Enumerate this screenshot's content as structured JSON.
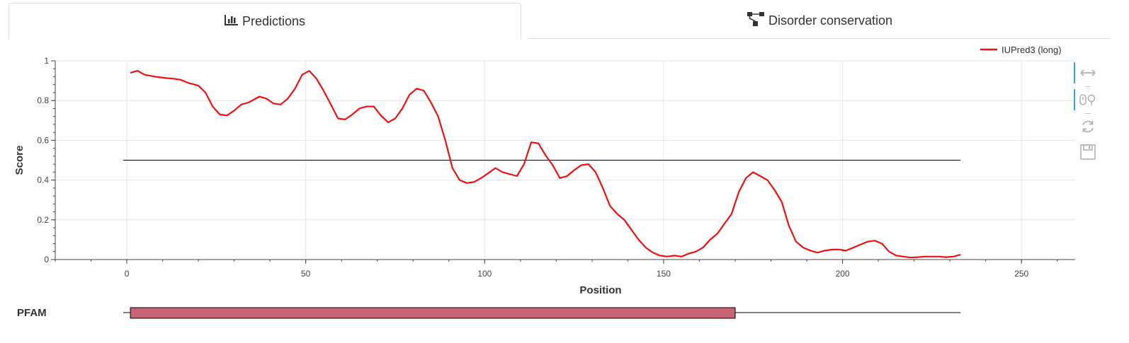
{
  "tabs": [
    {
      "label": "Predictions",
      "icon": "bar-chart-icon",
      "active": true
    },
    {
      "label": "Disorder conservation",
      "icon": "sitemap-icon",
      "active": false
    }
  ],
  "colors": {
    "series": "#ee1111",
    "threshold": "#000000",
    "grid": "#e5e5e5",
    "pfam_fill": "#c86473",
    "tool_active": "#26aae1",
    "tool_icon": "#b0b0b0"
  },
  "toolbar": {
    "tools": [
      {
        "icon": "pan-icon",
        "active": true
      },
      {
        "icon": "wheel-zoom-icon",
        "active": true
      },
      {
        "icon": "reset-icon",
        "active": false
      },
      {
        "icon": "save-icon",
        "active": false
      }
    ]
  },
  "tracks": {
    "pfam_label": "PFAM"
  },
  "chart_data": {
    "type": "line",
    "title": "",
    "xlabel": "Position",
    "ylabel": "Score",
    "xlim": [
      -20,
      265
    ],
    "ylim": [
      0,
      1
    ],
    "x_ticks": [
      0,
      50,
      100,
      150,
      200,
      250
    ],
    "x_tick_labels": [
      "0",
      "50",
      "100",
      "150",
      "200",
      "250"
    ],
    "y_ticks": [
      0,
      0.2,
      0.4,
      0.6,
      0.8,
      1
    ],
    "y_tick_labels": [
      "0",
      "0.2",
      "0.4",
      "0.6",
      "0.8",
      "1"
    ],
    "grid": true,
    "legend": {
      "placement": "top-right"
    },
    "series": [
      {
        "name": "IUPred3 (long)",
        "x": [
          1,
          3,
          5,
          8,
          10,
          13,
          15,
          17,
          20,
          22,
          24,
          26,
          28,
          30,
          32,
          34,
          37,
          39,
          41,
          43,
          45,
          47,
          49,
          51,
          53,
          55,
          57,
          59,
          61,
          63,
          65,
          67,
          69,
          71,
          73,
          75,
          77,
          79,
          81,
          83,
          85,
          87,
          89,
          91,
          93,
          95,
          97,
          99,
          101,
          103,
          105,
          107,
          109,
          111,
          113,
          115,
          117,
          119,
          121,
          123,
          125,
          127,
          129,
          131,
          133,
          135,
          137,
          139,
          141,
          143,
          145,
          147,
          149,
          151,
          153,
          155,
          157,
          159,
          161,
          163,
          165,
          167,
          169,
          171,
          173,
          175,
          177,
          179,
          181,
          183,
          185,
          187,
          189,
          191,
          193,
          195,
          197,
          199,
          201,
          203,
          205,
          207,
          209,
          211,
          213,
          215,
          217,
          219,
          221,
          223,
          225,
          227,
          229,
          231,
          233
        ],
        "y": [
          0.94,
          0.95,
          0.93,
          0.92,
          0.915,
          0.91,
          0.905,
          0.89,
          0.875,
          0.84,
          0.77,
          0.73,
          0.725,
          0.75,
          0.78,
          0.79,
          0.82,
          0.81,
          0.785,
          0.78,
          0.81,
          0.86,
          0.93,
          0.95,
          0.91,
          0.85,
          0.78,
          0.71,
          0.705,
          0.73,
          0.76,
          0.77,
          0.77,
          0.725,
          0.69,
          0.71,
          0.76,
          0.83,
          0.86,
          0.85,
          0.79,
          0.72,
          0.6,
          0.46,
          0.4,
          0.385,
          0.39,
          0.41,
          0.435,
          0.46,
          0.44,
          0.43,
          0.42,
          0.48,
          0.59,
          0.585,
          0.525,
          0.475,
          0.41,
          0.42,
          0.45,
          0.475,
          0.48,
          0.44,
          0.36,
          0.27,
          0.23,
          0.2,
          0.15,
          0.1,
          0.06,
          0.035,
          0.02,
          0.015,
          0.02,
          0.015,
          0.03,
          0.04,
          0.06,
          0.1,
          0.13,
          0.18,
          0.23,
          0.34,
          0.41,
          0.44,
          0.42,
          0.4,
          0.35,
          0.29,
          0.17,
          0.09,
          0.06,
          0.045,
          0.035,
          0.045,
          0.05,
          0.05,
          0.045,
          0.06,
          0.075,
          0.09,
          0.095,
          0.08,
          0.04,
          0.02,
          0.015,
          0.01,
          0.012,
          0.015,
          0.015,
          0.015,
          0.012,
          0.015,
          0.025
        ]
      }
    ],
    "threshold": {
      "y": 0.5,
      "x_start": -1,
      "x_end": 233
    },
    "pfam_track": {
      "line_x": [
        -1,
        233
      ],
      "domain": {
        "start": 1,
        "end": 170
      }
    }
  }
}
